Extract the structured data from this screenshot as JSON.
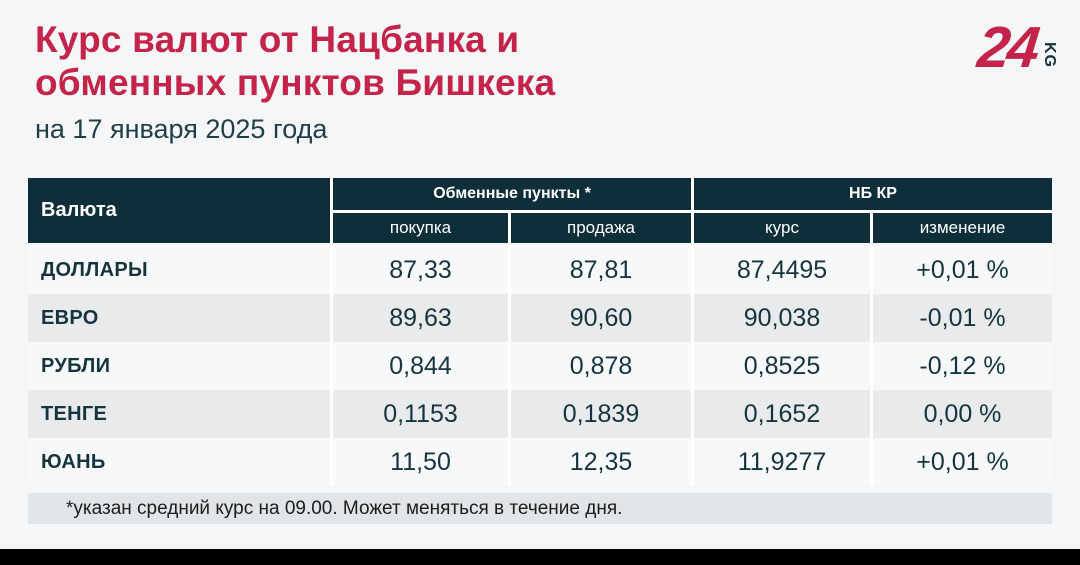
{
  "header": {
    "title": "Курс валют от Нацбанка и\nобменных пунктов Бишкека",
    "subtitle": "на 17 января 2025 года"
  },
  "logo": {
    "number": "24",
    "suffix": "KG"
  },
  "colors": {
    "accent_red": "#c4234a",
    "header_teal": "#0e2e3a",
    "text_teal": "#16343f",
    "row_light": "#f7f8fa",
    "row_gray": "#e8eaeb",
    "page_bg": "#f5f6f8",
    "footnote_bg": "#e2e5e7"
  },
  "table": {
    "col_currency": "Валюта",
    "group_exchange": "Обменные пункты *",
    "group_nbkr": "НБ КР",
    "sub_buy": "покупка",
    "sub_sell": "продажа",
    "sub_rate": "курс",
    "sub_change": "изменение",
    "rows": [
      {
        "currency": "ДОЛЛАРЫ",
        "buy": "87,33",
        "sell": "87,81",
        "rate": "87,4495",
        "change": "+0,01 %"
      },
      {
        "currency": "ЕВРО",
        "buy": "89,63",
        "sell": "90,60",
        "rate": "90,038",
        "change": "-0,01 %"
      },
      {
        "currency": "РУБЛИ",
        "buy": "0,844",
        "sell": "0,878",
        "rate": "0,8525",
        "change": "-0,12 %"
      },
      {
        "currency": "ТЕНГЕ",
        "buy": "0,1153",
        "sell": "0,1839",
        "rate": "0,1652",
        "change": "0,00 %"
      },
      {
        "currency": "ЮАНЬ",
        "buy": "11,50",
        "sell": "12,35",
        "rate": "11,9277",
        "change": "+0,01 %"
      }
    ]
  },
  "footer": {
    "note": "*указан средний курс на 09.00. Может меняться в течение дня."
  },
  "chart_data": {
    "type": "table",
    "title": "Курс валют от Нацбанка и обменных пунктов Бишкека",
    "subtitle": "на 17 января 2025 года",
    "column_groups": [
      {
        "label": "Обменные пункты *",
        "columns": [
          "покупка",
          "продажа"
        ]
      },
      {
        "label": "НБ КР",
        "columns": [
          "курс",
          "изменение"
        ]
      }
    ],
    "columns": [
      "Валюта",
      "покупка",
      "продажа",
      "курс",
      "изменение"
    ],
    "rows": [
      [
        "ДОЛЛАРЫ",
        "87,33",
        "87,81",
        "87,4495",
        "+0,01 %"
      ],
      [
        "ЕВРО",
        "89,63",
        "90,60",
        "90,038",
        "-0,01 %"
      ],
      [
        "РУБЛИ",
        "0,844",
        "0,878",
        "0,8525",
        "-0,12 %"
      ],
      [
        "ТЕНГЕ",
        "0,1153",
        "0,1839",
        "0,1652",
        "0,00 %"
      ],
      [
        "ЮАНЬ",
        "11,50",
        "12,35",
        "11,9277",
        "+0,01 %"
      ]
    ],
    "footnote": "*указан средний курс на 09.00. Может меняться в течение дня."
  }
}
